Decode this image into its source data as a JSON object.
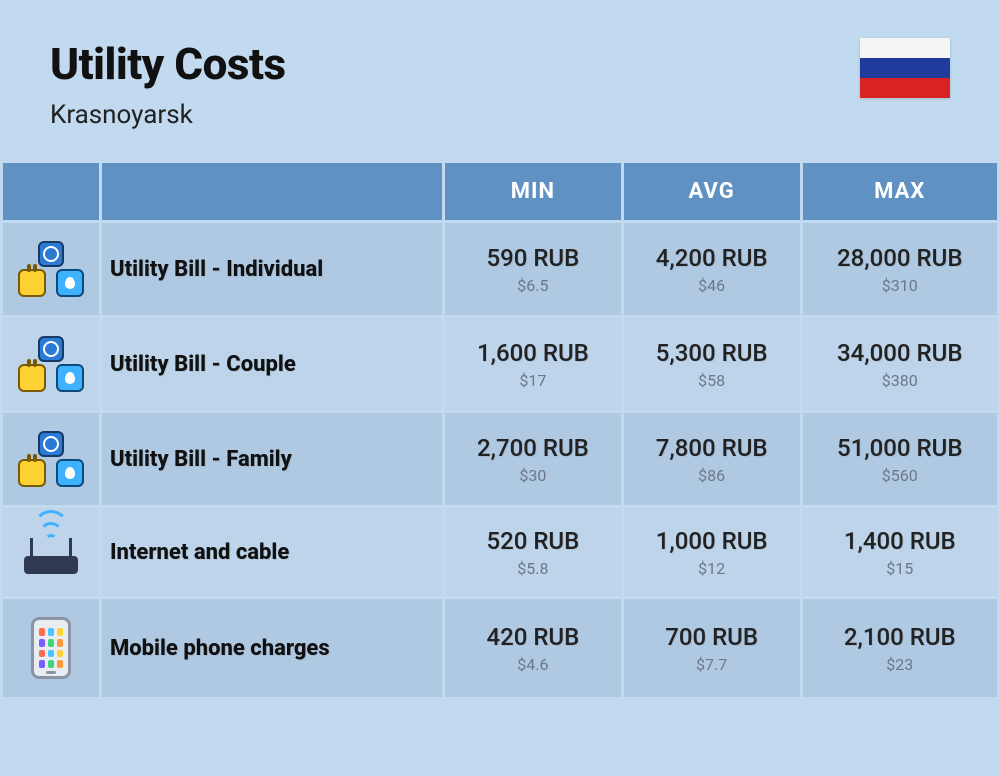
{
  "header": {
    "title": "Utility Costs",
    "subtitle": "Krasnoyarsk",
    "flag_colors": [
      "#f5f5f5",
      "#1f3b9b",
      "#d92323"
    ]
  },
  "columns": {
    "min": "MIN",
    "avg": "AVG",
    "max": "MAX"
  },
  "rows": [
    {
      "icon": "utility",
      "label": "Utility Bill - Individual",
      "min_rub": "590 RUB",
      "min_usd": "$6.5",
      "avg_rub": "4,200 RUB",
      "avg_usd": "$46",
      "max_rub": "28,000 RUB",
      "max_usd": "$310"
    },
    {
      "icon": "utility",
      "label": "Utility Bill - Couple",
      "min_rub": "1,600 RUB",
      "min_usd": "$17",
      "avg_rub": "5,300 RUB",
      "avg_usd": "$58",
      "max_rub": "34,000 RUB",
      "max_usd": "$380"
    },
    {
      "icon": "utility",
      "label": "Utility Bill - Family",
      "min_rub": "2,700 RUB",
      "min_usd": "$30",
      "avg_rub": "7,800 RUB",
      "avg_usd": "$86",
      "max_rub": "51,000 RUB",
      "max_usd": "$560"
    },
    {
      "icon": "router",
      "label": "Internet and cable",
      "min_rub": "520 RUB",
      "min_usd": "$5.8",
      "avg_rub": "1,000 RUB",
      "avg_usd": "$12",
      "max_rub": "1,400 RUB",
      "max_usd": "$15"
    },
    {
      "icon": "phone",
      "label": "Mobile phone charges",
      "min_rub": "420 RUB",
      "min_usd": "$4.6",
      "avg_rub": "700 RUB",
      "avg_usd": "$7.7",
      "max_rub": "2,100 RUB",
      "max_usd": "$23"
    }
  ],
  "phone_app_colors": [
    "#ff6b4a",
    "#4ac6ff",
    "#ffd233",
    "#7a5cff",
    "#3fd67a",
    "#ff9a3c",
    "#ff6b4a",
    "#4ac6ff",
    "#ffd233",
    "#7a5cff",
    "#3fd67a",
    "#ff9a3c"
  ]
}
